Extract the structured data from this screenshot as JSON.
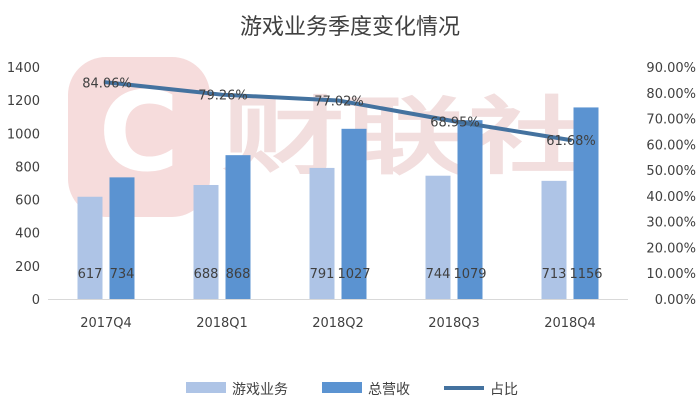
{
  "watermark": {
    "text": "财联社",
    "logo_letter": "C",
    "color": "#f3d7d7"
  },
  "chart_data": {
    "type": "bar",
    "title": "游戏业务季度变化情况",
    "categories": [
      "2017Q4",
      "2018Q1",
      "2018Q2",
      "2018Q3",
      "2018Q4"
    ],
    "series": [
      {
        "name": "游戏业务",
        "kind": "bar",
        "axis": "left",
        "color": "#aec4e6",
        "values": [
          617,
          688,
          791,
          744,
          713
        ],
        "labels": [
          "617",
          "688",
          "791",
          "744",
          "713"
        ]
      },
      {
        "name": "总营收",
        "kind": "bar",
        "axis": "left",
        "color": "#5b93d1",
        "values": [
          734,
          868,
          1027,
          1079,
          1156
        ],
        "labels": [
          "734",
          "868",
          "1027",
          "1079",
          "1156"
        ]
      },
      {
        "name": "占比",
        "kind": "line",
        "axis": "right",
        "color": "#44729f",
        "values": [
          84.06,
          79.26,
          77.02,
          68.95,
          61.68
        ],
        "labels": [
          "84.06%",
          "79.26%",
          "77.02%",
          "68.95%",
          "61.68%"
        ]
      }
    ],
    "y_left": {
      "ylim": [
        0,
        1400
      ],
      "ticks": [
        "0",
        "200",
        "400",
        "600",
        "800",
        "1000",
        "1200",
        "1400"
      ]
    },
    "y_right": {
      "ylim": [
        0,
        90
      ],
      "ticks": [
        "0.00%",
        "10.00%",
        "20.00%",
        "30.00%",
        "40.00%",
        "50.00%",
        "60.00%",
        "70.00%",
        "80.00%",
        "90.00%"
      ]
    },
    "grid": false,
    "legend": "bottom"
  }
}
